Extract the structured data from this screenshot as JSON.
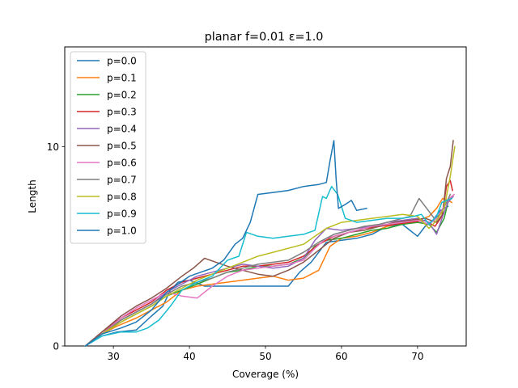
{
  "chart_data": {
    "type": "line",
    "title": "planar f=0.01 ε=1.0",
    "xlabel": "Coverage (%)",
    "ylabel": "Length",
    "xlim": [
      23.6,
      76.4
    ],
    "ylim": [
      0,
      15
    ],
    "xticks": [
      30,
      40,
      50,
      60,
      70
    ],
    "yticks": [
      0,
      10
    ],
    "grid": false,
    "legend_position": "upper-left",
    "series": [
      {
        "name": "p=0.0",
        "color": "#1f77b4",
        "points": [
          [
            26.3,
            0
          ],
          [
            28.5,
            0.5
          ],
          [
            30.5,
            0.7
          ],
          [
            33,
            0.8
          ],
          [
            35,
            1.5
          ],
          [
            36.5,
            2
          ],
          [
            37.5,
            2.8
          ],
          [
            38.5,
            3.2
          ],
          [
            40,
            3.3
          ],
          [
            42,
            3
          ],
          [
            44,
            3
          ],
          [
            46,
            3
          ],
          [
            49,
            3
          ],
          [
            51,
            3
          ],
          [
            53,
            3
          ],
          [
            54.5,
            3.7
          ],
          [
            56,
            4.2
          ],
          [
            58,
            5.2
          ],
          [
            60,
            5.3
          ],
          [
            62,
            5.4
          ],
          [
            64,
            5.6
          ],
          [
            66,
            6
          ],
          [
            68,
            6.1
          ],
          [
            70,
            5.5
          ],
          [
            71,
            6
          ],
          [
            72,
            6.3
          ],
          [
            73,
            6.8
          ],
          [
            74,
            7
          ]
        ]
      },
      {
        "name": "p=0.1",
        "color": "#ff7f0e",
        "points": [
          [
            26.3,
            0
          ],
          [
            28.5,
            0.6
          ],
          [
            30.5,
            1
          ],
          [
            33,
            1.4
          ],
          [
            35,
            1.8
          ],
          [
            37,
            2.2
          ],
          [
            39,
            2.8
          ],
          [
            41,
            3
          ],
          [
            43,
            3.1
          ],
          [
            45,
            3.2
          ],
          [
            47,
            3.3
          ],
          [
            49,
            3.4
          ],
          [
            51,
            3.5
          ],
          [
            53,
            3.3
          ],
          [
            55,
            3.4
          ],
          [
            57,
            3.8
          ],
          [
            58.5,
            5
          ],
          [
            60,
            5.4
          ],
          [
            62,
            5.5
          ],
          [
            64,
            5.7
          ],
          [
            66,
            6
          ],
          [
            68,
            6.2
          ],
          [
            70,
            6.3
          ],
          [
            71.5,
            6.5
          ],
          [
            72.5,
            6.9
          ],
          [
            73.3,
            7.4
          ],
          [
            74,
            7.3
          ],
          [
            74.5,
            7.2
          ]
        ]
      },
      {
        "name": "p=0.2",
        "color": "#2ca02c",
        "points": [
          [
            26.3,
            0
          ],
          [
            28.5,
            0.6
          ],
          [
            31,
            1.2
          ],
          [
            33,
            1.6
          ],
          [
            35,
            2
          ],
          [
            37,
            2.5
          ],
          [
            39,
            2.8
          ],
          [
            41,
            3.1
          ],
          [
            43,
            3.4
          ],
          [
            45,
            3.7
          ],
          [
            47,
            3.8
          ],
          [
            49,
            4
          ],
          [
            51,
            4
          ],
          [
            53,
            4.1
          ],
          [
            55,
            4.4
          ],
          [
            56.5,
            5
          ],
          [
            58,
            5.3
          ],
          [
            60,
            5.4
          ],
          [
            62,
            5.6
          ],
          [
            64,
            5.8
          ],
          [
            66,
            5.9
          ],
          [
            68,
            6.1
          ],
          [
            70,
            6.2
          ],
          [
            71.5,
            6.1
          ],
          [
            72.5,
            5.7
          ],
          [
            73.5,
            6.4
          ],
          [
            74,
            7.2
          ],
          [
            74.5,
            7.5
          ]
        ]
      },
      {
        "name": "p=0.3",
        "color": "#d62728",
        "points": [
          [
            26.3,
            0
          ],
          [
            28.5,
            0.7
          ],
          [
            31,
            1.4
          ],
          [
            33,
            1.8
          ],
          [
            35,
            2.2
          ],
          [
            37,
            2.8
          ],
          [
            39,
            3.2
          ],
          [
            41,
            3.4
          ],
          [
            43,
            3.6
          ],
          [
            45,
            3.8
          ],
          [
            47,
            4
          ],
          [
            49,
            4
          ],
          [
            51,
            4.1
          ],
          [
            53,
            4.2
          ],
          [
            55,
            4.5
          ],
          [
            57,
            5.1
          ],
          [
            59,
            5.5
          ],
          [
            61,
            5.7
          ],
          [
            63,
            5.9
          ],
          [
            65,
            6
          ],
          [
            67,
            6.1
          ],
          [
            69,
            6.2
          ],
          [
            71,
            6.3
          ],
          [
            72.3,
            6
          ],
          [
            73.2,
            6.5
          ],
          [
            73.8,
            8
          ],
          [
            74.3,
            8.3
          ],
          [
            74.6,
            7.8
          ]
        ]
      },
      {
        "name": "p=0.4",
        "color": "#9467bd",
        "points": [
          [
            26.3,
            0
          ],
          [
            28.5,
            0.6
          ],
          [
            31,
            1.3
          ],
          [
            33,
            1.7
          ],
          [
            35,
            2.1
          ],
          [
            37,
            2.7
          ],
          [
            39,
            3.1
          ],
          [
            41,
            3.5
          ],
          [
            43,
            3.7
          ],
          [
            45,
            3.9
          ],
          [
            47,
            4.1
          ],
          [
            49,
            4
          ],
          [
            51,
            3.9
          ],
          [
            53,
            4
          ],
          [
            55,
            4.4
          ],
          [
            56.5,
            5.3
          ],
          [
            58,
            5.9
          ],
          [
            60,
            5.8
          ],
          [
            62,
            5.9
          ],
          [
            64,
            6
          ],
          [
            66,
            6.2
          ],
          [
            68,
            6.3
          ],
          [
            70,
            6.4
          ],
          [
            71.5,
            6.2
          ],
          [
            72.5,
            5.6
          ],
          [
            73.3,
            6.5
          ],
          [
            74,
            7.2
          ],
          [
            74.7,
            7.5
          ]
        ]
      },
      {
        "name": "p=0.5",
        "color": "#8c564b",
        "points": [
          [
            26.3,
            0
          ],
          [
            28.5,
            0.7
          ],
          [
            31,
            1.5
          ],
          [
            33,
            2
          ],
          [
            35,
            2.4
          ],
          [
            37,
            2.9
          ],
          [
            39,
            3.5
          ],
          [
            40.5,
            3.9
          ],
          [
            42,
            4.4
          ],
          [
            43.5,
            4.2
          ],
          [
            45,
            4
          ],
          [
            47,
            3.8
          ],
          [
            49,
            3.6
          ],
          [
            51,
            3.5
          ],
          [
            53,
            3.8
          ],
          [
            55,
            4.2
          ],
          [
            57,
            4.8
          ],
          [
            59,
            5.4
          ],
          [
            61,
            5.7
          ],
          [
            63,
            5.8
          ],
          [
            65,
            6
          ],
          [
            67,
            6.2
          ],
          [
            69,
            6.3
          ],
          [
            71,
            6.4
          ],
          [
            72.5,
            6.2
          ],
          [
            73.3,
            6.6
          ],
          [
            73.8,
            8.4
          ],
          [
            74.3,
            9
          ],
          [
            74.7,
            10.3
          ]
        ]
      },
      {
        "name": "p=0.6",
        "color": "#e377c2",
        "points": [
          [
            26.3,
            0
          ],
          [
            28.5,
            0.6
          ],
          [
            31,
            1.4
          ],
          [
            33,
            1.9
          ],
          [
            35,
            2.3
          ],
          [
            37,
            2.7
          ],
          [
            39,
            2.5
          ],
          [
            41,
            2.4
          ],
          [
            43,
            3
          ],
          [
            45,
            3.5
          ],
          [
            47,
            3.8
          ],
          [
            49,
            3.9
          ],
          [
            51,
            4
          ],
          [
            53,
            4.1
          ],
          [
            55,
            4.3
          ],
          [
            56.5,
            4.9
          ],
          [
            58,
            5.4
          ],
          [
            60,
            5.6
          ],
          [
            62,
            5.8
          ],
          [
            64,
            6
          ],
          [
            66,
            6.1
          ],
          [
            68,
            6.2
          ],
          [
            70,
            6.3
          ],
          [
            71.5,
            6.1
          ],
          [
            72.5,
            6.4
          ],
          [
            73.5,
            7
          ],
          [
            74.2,
            7.4
          ],
          [
            74.8,
            7.6
          ]
        ]
      },
      {
        "name": "p=0.7",
        "color": "#7f7f7f",
        "points": [
          [
            26.3,
            0
          ],
          [
            28.5,
            0.6
          ],
          [
            31,
            1.3
          ],
          [
            33,
            1.7
          ],
          [
            35,
            2.1
          ],
          [
            37,
            2.6
          ],
          [
            39,
            3
          ],
          [
            41,
            3.2
          ],
          [
            43,
            3.4
          ],
          [
            45,
            3.7
          ],
          [
            47,
            3.9
          ],
          [
            49,
            4.1
          ],
          [
            51,
            4.2
          ],
          [
            53,
            4.3
          ],
          [
            55,
            4.7
          ],
          [
            57,
            5.2
          ],
          [
            59,
            5.6
          ],
          [
            61,
            5.8
          ],
          [
            63,
            6
          ],
          [
            65,
            6.1
          ],
          [
            67,
            6.3
          ],
          [
            69,
            6.5
          ],
          [
            70.2,
            7.4
          ],
          [
            71.2,
            6.9
          ],
          [
            72.2,
            6.4
          ],
          [
            73,
            6.6
          ],
          [
            73.7,
            7.1
          ],
          [
            74.3,
            7.6
          ]
        ]
      },
      {
        "name": "p=0.8",
        "color": "#bcbd22",
        "points": [
          [
            26.3,
            0
          ],
          [
            28.5,
            0.6
          ],
          [
            31,
            1.2
          ],
          [
            33,
            1.6
          ],
          [
            35,
            2
          ],
          [
            37,
            2.5
          ],
          [
            39,
            2.9
          ],
          [
            41,
            3.3
          ],
          [
            43,
            3.6
          ],
          [
            45,
            3.9
          ],
          [
            47,
            4.2
          ],
          [
            49,
            4.5
          ],
          [
            51,
            4.7
          ],
          [
            53,
            4.9
          ],
          [
            55,
            5.1
          ],
          [
            56.5,
            5.5
          ],
          [
            58,
            5.9
          ],
          [
            60,
            6.2
          ],
          [
            62,
            6.3
          ],
          [
            64,
            6.4
          ],
          [
            66,
            6.5
          ],
          [
            68,
            6.6
          ],
          [
            70,
            6.5
          ],
          [
            71.5,
            5.9
          ],
          [
            72.5,
            6.3
          ],
          [
            73.5,
            6.9
          ],
          [
            74.3,
            8.5
          ],
          [
            74.9,
            10
          ]
        ]
      },
      {
        "name": "p=0.9",
        "color": "#17becf",
        "points": [
          [
            26.3,
            0
          ],
          [
            28.5,
            0.5
          ],
          [
            31,
            0.7
          ],
          [
            33,
            0.7
          ],
          [
            34.5,
            0.9
          ],
          [
            36,
            1.3
          ],
          [
            37.5,
            2
          ],
          [
            39,
            2.8
          ],
          [
            41,
            3.2
          ],
          [
            43,
            3.5
          ],
          [
            45,
            4.3
          ],
          [
            46.5,
            4.5
          ],
          [
            47.5,
            5.7
          ],
          [
            49,
            5.5
          ],
          [
            51,
            5.4
          ],
          [
            53,
            5.5
          ],
          [
            55,
            5.6
          ],
          [
            56.5,
            5.8
          ],
          [
            57.5,
            7.5
          ],
          [
            58,
            7.4
          ],
          [
            58.7,
            8
          ],
          [
            59.5,
            7.6
          ],
          [
            60.5,
            6.4
          ],
          [
            62,
            6.2
          ],
          [
            64,
            6.3
          ],
          [
            66,
            6.4
          ],
          [
            68,
            6.4
          ],
          [
            69.5,
            6.5
          ],
          [
            70.5,
            6.6
          ],
          [
            71.5,
            6.1
          ],
          [
            72.5,
            6.5
          ],
          [
            73.2,
            7.2
          ],
          [
            74.5,
            7.4
          ]
        ]
      },
      {
        "name": "p=1.0",
        "color": "#1f77b4",
        "points": [
          [
            26.3,
            0
          ],
          [
            28.5,
            0.6
          ],
          [
            31,
            0.9
          ],
          [
            33,
            1.2
          ],
          [
            35,
            1.8
          ],
          [
            37,
            2.7
          ],
          [
            38.5,
            3.1
          ],
          [
            40,
            3.5
          ],
          [
            41.5,
            3.7
          ],
          [
            43,
            3.9
          ],
          [
            44.5,
            4.3
          ],
          [
            46,
            5.1
          ],
          [
            47,
            5.4
          ],
          [
            48,
            6.2
          ],
          [
            49,
            7.6
          ],
          [
            51,
            7.7
          ],
          [
            53,
            7.8
          ],
          [
            55,
            8
          ],
          [
            57,
            8.1
          ],
          [
            58,
            8.2
          ],
          [
            58.5,
            9.3
          ],
          [
            59,
            10.3
          ],
          [
            59.3,
            8.3
          ],
          [
            59.6,
            6.9
          ],
          [
            60.5,
            7.1
          ],
          [
            61.3,
            7.3
          ],
          [
            62,
            6.8
          ],
          [
            63.3,
            6.9
          ]
        ]
      }
    ]
  }
}
